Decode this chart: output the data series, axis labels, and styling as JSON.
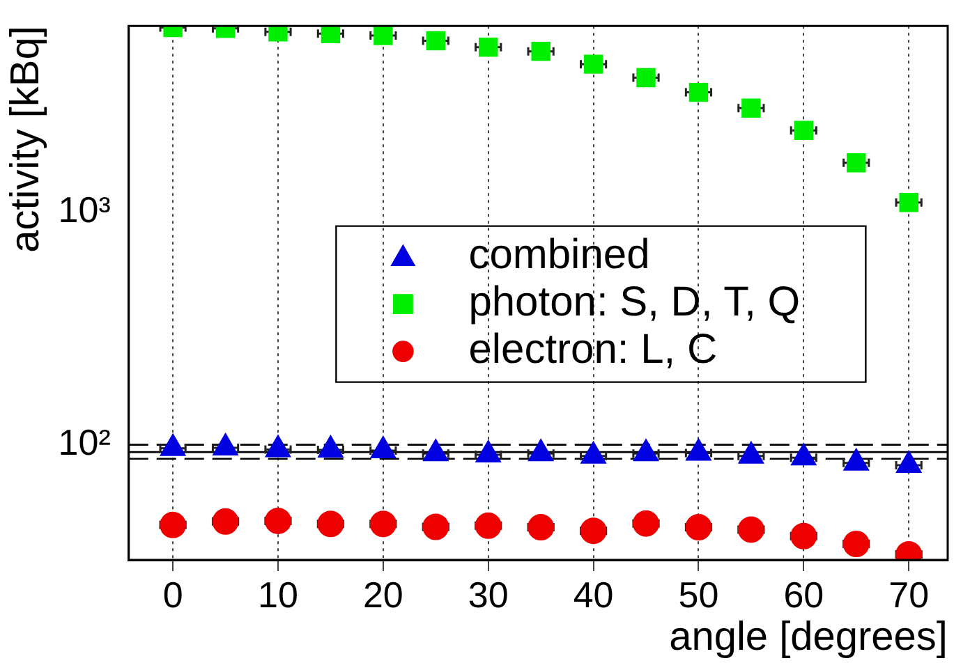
{
  "chart_data": {
    "type": "scatter",
    "xlabel": "angle [degrees]",
    "ylabel": "activity [kBq]",
    "x": [
      0,
      5,
      10,
      15,
      20,
      25,
      30,
      35,
      40,
      45,
      50,
      55,
      60,
      65,
      70
    ],
    "xlim": [
      -4.2,
      73.7
    ],
    "xticks": [
      0,
      10,
      20,
      30,
      40,
      50,
      60,
      70
    ],
    "ylim": [
      32,
      6300
    ],
    "yticks": [
      {
        "value": 100,
        "label": "10²"
      },
      {
        "value": 1000,
        "label": "10³"
      }
    ],
    "log": "y",
    "grid": "x",
    "legend": "center",
    "series": [
      {
        "name": "combined",
        "color": "#0000e0",
        "marker": "triangle",
        "values": [
          96.6,
          97.1,
          95.4,
          95.0,
          94.4,
          91.7,
          90.6,
          91.7,
          89.5,
          91.7,
          92.2,
          89.5,
          88.0,
          83.5,
          81.6
        ],
        "xerrors": [
          1.2,
          1.2,
          1.2,
          1.2,
          1.2,
          1.2,
          1.2,
          1.2,
          1.2,
          1.2,
          1.2,
          1.2,
          1.2,
          1.2,
          1.2
        ]
      },
      {
        "name": "photon: S, D, T, Q",
        "color": "#00ee00",
        "marker": "square",
        "values": [
          6200,
          6150,
          5935,
          5835,
          5730,
          5440,
          5105,
          4900,
          4315,
          3777,
          3265,
          2795,
          2240,
          1626,
          1098
        ],
        "xerrors": [
          1.2,
          1.2,
          1.2,
          1.2,
          1.2,
          1.2,
          1.2,
          1.2,
          1.2,
          1.2,
          1.2,
          1.2,
          1.2,
          1.2,
          1.2
        ]
      },
      {
        "name": "electron: L, C",
        "color": "#ee0000",
        "marker": "circle",
        "values": [
          45.2,
          46.8,
          47.1,
          45.7,
          45.7,
          44.4,
          44.9,
          44.2,
          42.7,
          45.9,
          44.2,
          43.2,
          40.5,
          37.5,
          33.8
        ],
        "xerrors": [
          1.2,
          1.2,
          1.2,
          1.2,
          1.2,
          1.2,
          1.2,
          1.2,
          1.2,
          1.2,
          1.2,
          1.2,
          1.2,
          1.2,
          1.2
        ]
      }
    ],
    "ref_lines": [
      {
        "axis": "y",
        "value": 100,
        "line_style": "dashed"
      },
      {
        "axis": "y",
        "value": 93,
        "line_style": "solid"
      },
      {
        "axis": "y",
        "value": 87,
        "line_style": "dashed"
      }
    ]
  }
}
